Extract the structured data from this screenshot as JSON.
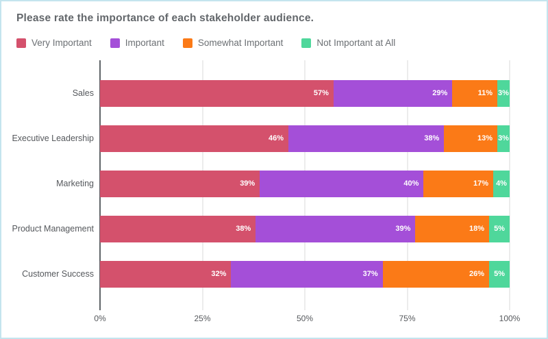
{
  "title": "Please rate the importance of each stakeholder audience.",
  "chart_data": {
    "type": "bar",
    "orientation": "horizontal-stacked-100",
    "title": "Please rate the importance of each stakeholder audience.",
    "categories": [
      "Sales",
      "Executive Leadership",
      "Marketing",
      "Product Management",
      "Customer Success"
    ],
    "series": [
      {
        "name": "Very Important",
        "color": "#d4516c",
        "values": [
          57,
          46,
          39,
          38,
          32
        ],
        "labels": [
          "57%",
          "46%",
          "39%",
          "38%",
          "32%"
        ]
      },
      {
        "name": "Important",
        "color": "#a44fd8",
        "values": [
          29,
          38,
          40,
          39,
          37
        ],
        "labels": [
          "29%",
          "38%",
          "40%",
          "39%",
          "37%"
        ]
      },
      {
        "name": "Somewhat Important",
        "color": "#fb7a17",
        "values": [
          11,
          13,
          17,
          18,
          26
        ],
        "labels": [
          "11%",
          "13%",
          "17%",
          "18%",
          "26%"
        ]
      },
      {
        "name": "Not Important at All",
        "color": "#4fd79b",
        "values": [
          3,
          3,
          4,
          5,
          5
        ],
        "labels": [
          "3%",
          "3%",
          "4%",
          "5%",
          "5%"
        ]
      }
    ],
    "value_suffix": "%",
    "xlabel": "",
    "ylabel": "",
    "xlim": [
      0,
      100
    ],
    "x_ticks": [
      "0%",
      "25%",
      "50%",
      "75%",
      "100%"
    ],
    "x_tick_positions": [
      0,
      25,
      50,
      75,
      100
    ],
    "grid": true,
    "legend_position": "top"
  },
  "colors": {
    "border": "#c4e4ee",
    "title_text": "#63676b",
    "legend_text": "#6b6f73",
    "category_text": "#55585c",
    "axis_line": "#5f6468",
    "gridline": "#d8d8d8",
    "bar_label": "#ffffff"
  }
}
